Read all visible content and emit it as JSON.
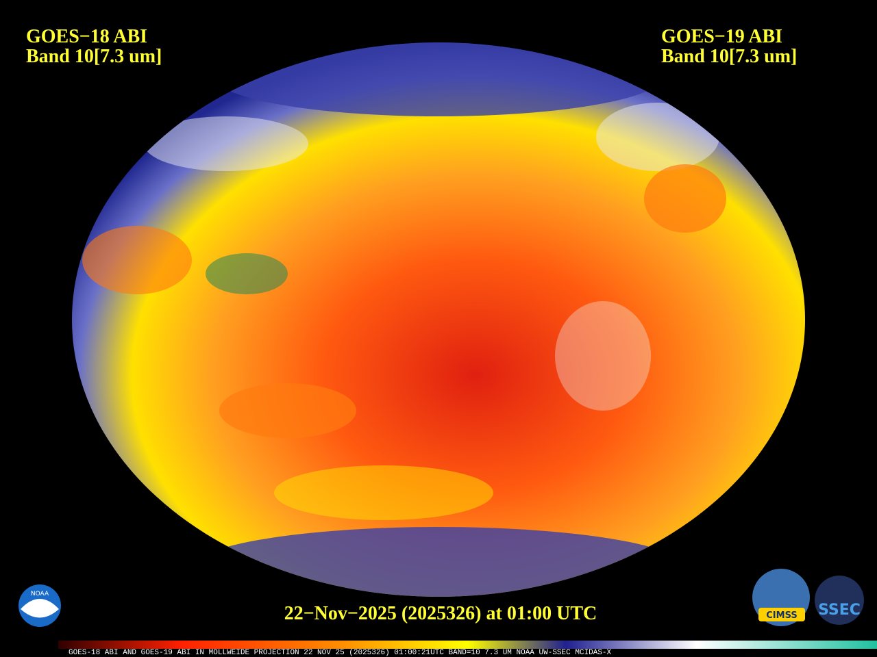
{
  "header": {
    "left": {
      "satellite": "GOES−18 ABI",
      "band": "Band 10[7.3 um]"
    },
    "right": {
      "satellite": "GOES−19 ABI",
      "band": "Band 10[7.3 um]"
    }
  },
  "timestamp": "22−Nov−2025 (2025326) at 01:00 UTC",
  "footer": "GOES-18 ABI AND GOES-19 ABI IN MOLLWEIDE PROJECTION 22 NOV 25 (2025326) 01:00:21UTC BAND=10 7.3 UM NOAA UW-SSEC MCIDAS-X",
  "logos": {
    "noaa": "NOAA",
    "cimss": "CIMSS",
    "ssec": "SSEC"
  }
}
